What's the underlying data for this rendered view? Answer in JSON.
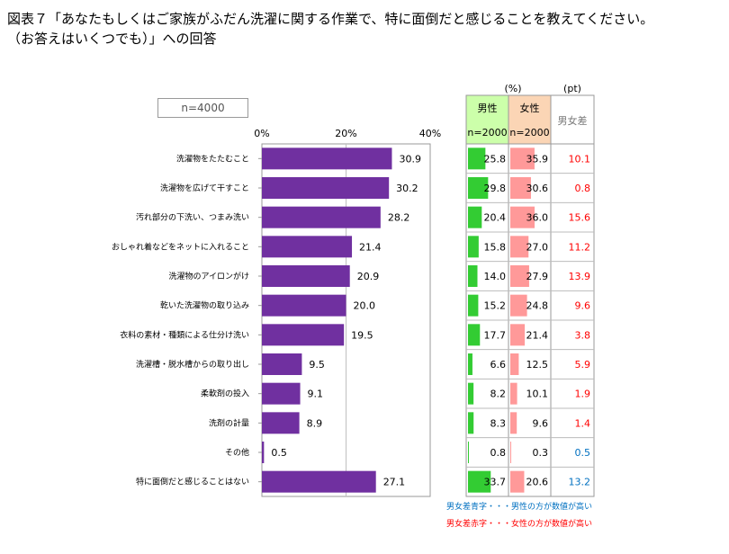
{
  "title": {
    "line1": "図表７「あなたもしくはご家族がふだん洗濯に関する作業で、特に面倒だと感じることを教えてください。",
    "line2": "（お答えはいくつでも）」への回答"
  },
  "sample": "n=4000",
  "colors": {
    "bar": "#7030a0",
    "male": "#33cc33",
    "female": "#ff9999",
    "male_header_bg": "#ccffaa",
    "female_header_bg": "#fbd5b5",
    "diff_red": "#ff0000",
    "diff_blue": "#0070c0",
    "grid": "#bfbfbf"
  },
  "chart_data": {
    "type": "bar",
    "orientation": "horizontal",
    "categories": [
      "洗濯物をたたむこと",
      "洗濯物を広げて干すこと",
      "汚れ部分の下洗い、つまみ洗い",
      "おしゃれ着などをネットに入れること",
      "洗濯物のアイロンがけ",
      "乾いた洗濯物の取り込み",
      "衣料の素材・種類による仕分け洗い",
      "洗濯槽・脱水槽からの取り出し",
      "柔軟剤の投入",
      "洗剤の計量",
      "その他",
      "特に面倒だと感じることはない"
    ],
    "values": [
      30.9,
      30.2,
      28.2,
      21.4,
      20.9,
      20.0,
      19.5,
      9.5,
      9.1,
      8.9,
      0.5,
      27.1
    ],
    "value_labels": [
      "30.9",
      "30.2",
      "28.2",
      "21.4",
      "20.9",
      "20.0",
      "19.5",
      "9.5",
      "9.1",
      "8.9",
      "0.5",
      "27.1"
    ],
    "xlim": [
      0,
      40
    ],
    "xticks": [
      "0%",
      "20%",
      "40%"
    ],
    "grid": true
  },
  "table": {
    "unit_pct": "(%)",
    "unit_pt": "(pt)",
    "male_label": "男性",
    "male_n": "n=2000",
    "female_label": "女性",
    "female_n": "n=2000",
    "diff_label": "男女差",
    "male": [
      25.8,
      29.8,
      20.4,
      15.8,
      14.0,
      15.2,
      17.7,
      6.6,
      8.2,
      8.3,
      0.8,
      33.7
    ],
    "male_labels": [
      "25.8",
      "29.8",
      "20.4",
      "15.8",
      "14.0",
      "15.2",
      "17.7",
      "6.6",
      "8.2",
      "8.3",
      "0.8",
      "33.7"
    ],
    "female": [
      35.9,
      30.6,
      36.0,
      27.0,
      27.9,
      24.8,
      21.4,
      12.5,
      10.1,
      9.6,
      0.3,
      20.6
    ],
    "female_labels": [
      "35.9",
      "30.6",
      "36.0",
      "27.0",
      "27.9",
      "24.8",
      "21.4",
      "12.5",
      "10.1",
      "9.6",
      "0.3",
      "20.6"
    ],
    "diff_labels": [
      "10.1",
      "0.8",
      "15.6",
      "11.2",
      "13.9",
      "9.6",
      "3.8",
      "5.9",
      "1.9",
      "1.4",
      "0.5",
      "13.2"
    ],
    "diff_color": [
      "red",
      "red",
      "red",
      "red",
      "red",
      "red",
      "red",
      "red",
      "red",
      "red",
      "blue",
      "blue"
    ]
  },
  "legend": {
    "blue": "男女差青字・・・男性の方が数値が高い",
    "red": "男女差赤字・・・女性の方が数値が高い"
  }
}
